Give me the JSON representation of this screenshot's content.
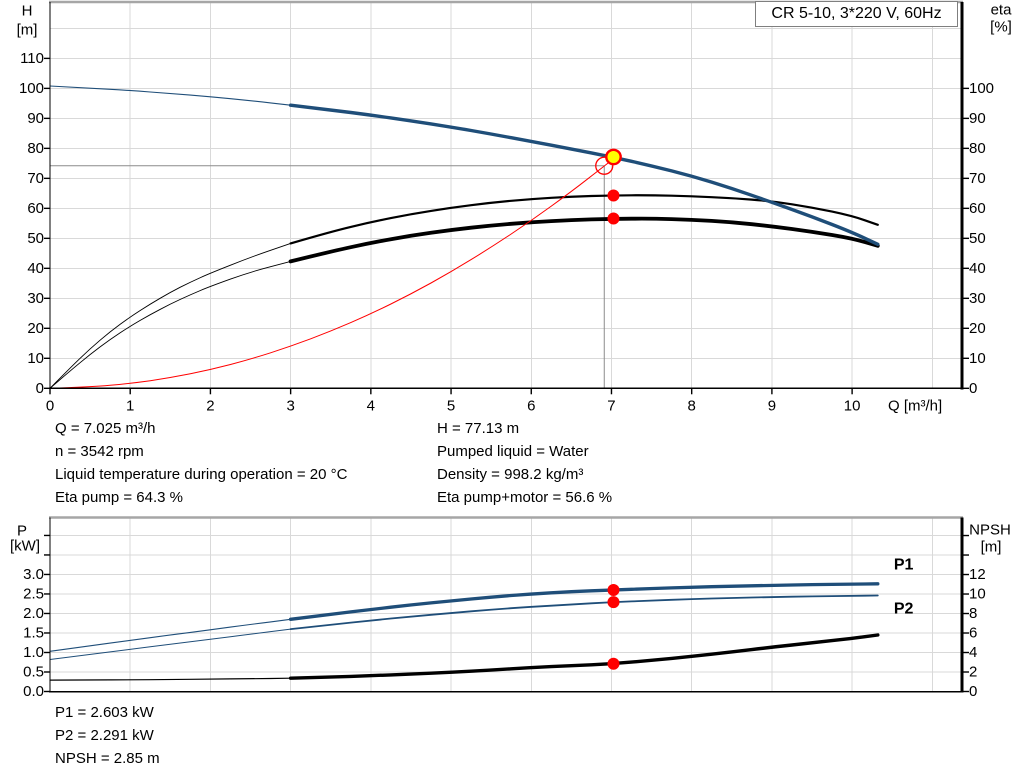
{
  "title_box": {
    "text": "CR 5-10, 3*220 V, 60Hz"
  },
  "info_top": {
    "left": [
      "Q = 7.025 m³/h",
      "n = 3542 rpm",
      "Liquid temperature during operation = 20 °C",
      "Eta pump = 64.3 %"
    ],
    "right": [
      "H = 77.13 m",
      "Pumped liquid = Water",
      "Density = 998.2 kg/m³",
      "Eta pump+motor = 56.6 %"
    ]
  },
  "info_bottom": [
    "P1 = 2.603 kW",
    "P2 = 2.291 kW",
    "NPSH = 2.85 m"
  ],
  "colors": {
    "curve_blue": "#1f4e79",
    "curve_black": "#000000",
    "red": "#ff0000",
    "yellow": "#ffff00",
    "grid": "#d9d9d9",
    "axis": "#000000",
    "border_gray": "#a6a6a6",
    "crosshair": "#8c8c8c"
  },
  "chart_data": [
    {
      "id": "hq",
      "type": "line",
      "title": "CR 5-10, 3*220 V, 60Hz",
      "x": {
        "label": "Q [m³/h]",
        "min": 0,
        "max": 11.37,
        "grid_step": 1,
        "ticks": [
          {
            "v": 0,
            "t": "0"
          },
          {
            "v": 1,
            "t": "1"
          },
          {
            "v": 2,
            "t": "2"
          },
          {
            "v": 3,
            "t": "3"
          },
          {
            "v": 4,
            "t": "4"
          },
          {
            "v": 5,
            "t": "5"
          },
          {
            "v": 6,
            "t": "6"
          },
          {
            "v": 7,
            "t": "7"
          },
          {
            "v": 8,
            "t": "8"
          },
          {
            "v": 9,
            "t": "9"
          },
          {
            "v": 10,
            "t": "10"
          }
        ]
      },
      "y_left": {
        "label": "H [m]",
        "label_lines": [
          "H",
          "[m]"
        ],
        "min": 0,
        "max": 128.8,
        "grid_step": 10,
        "ticks": [
          {
            "v": 0,
            "t": "0"
          },
          {
            "v": 10,
            "t": "10"
          },
          {
            "v": 20,
            "t": "20"
          },
          {
            "v": 30,
            "t": "30"
          },
          {
            "v": 40,
            "t": "40"
          },
          {
            "v": 50,
            "t": "50"
          },
          {
            "v": 60,
            "t": "60"
          },
          {
            "v": 70,
            "t": "70"
          },
          {
            "v": 80,
            "t": "80"
          },
          {
            "v": 90,
            "t": "90"
          },
          {
            "v": 100,
            "t": "100"
          },
          {
            "v": 110,
            "t": "110"
          }
        ],
        "extra_ticks": []
      },
      "y_right": {
        "label": "eta [%]",
        "label_lines": [
          "eta",
          "[%]"
        ],
        "min": 0,
        "max": 128.8,
        "ticks": [
          {
            "v": 0,
            "t": "0"
          },
          {
            "v": 10,
            "t": "10"
          },
          {
            "v": 20,
            "t": "20"
          },
          {
            "v": 30,
            "t": "30"
          },
          {
            "v": 40,
            "t": "40"
          },
          {
            "v": 50,
            "t": "50"
          },
          {
            "v": 60,
            "t": "60"
          },
          {
            "v": 70,
            "t": "70"
          },
          {
            "v": 80,
            "t": "80"
          },
          {
            "v": 90,
            "t": "90"
          },
          {
            "v": 100,
            "t": "100"
          }
        ],
        "extra_ticks": []
      },
      "series": [
        {
          "name": "eta-pump-curve",
          "axis": "right",
          "color": "#000000",
          "w": 2.2,
          "w_thin": 0.9,
          "thin_until": 3,
          "points": [
            [
              0,
              0
            ],
            [
              0.25,
              6.8
            ],
            [
              0.5,
              13.2
            ],
            [
              0.75,
              18.9
            ],
            [
              1,
              23.8
            ],
            [
              1.25,
              28.1
            ],
            [
              1.5,
              32.0
            ],
            [
              1.75,
              35.4
            ],
            [
              2,
              38.4
            ],
            [
              2.5,
              43.7
            ],
            [
              3,
              48.3
            ],
            [
              3.5,
              52.2
            ],
            [
              4,
              55.4
            ],
            [
              4.5,
              58.1
            ],
            [
              5,
              60.2
            ],
            [
              5.5,
              61.9
            ],
            [
              6,
              63.1
            ],
            [
              6.5,
              63.9
            ],
            [
              7,
              64.3
            ],
            [
              7.5,
              64.4
            ],
            [
              8,
              64.0
            ],
            [
              8.5,
              63.4
            ],
            [
              9,
              62.4
            ],
            [
              9.5,
              60.3
            ],
            [
              10,
              57.5
            ],
            [
              10.32,
              54.5
            ]
          ]
        },
        {
          "name": "eta-pump-motor-curve",
          "axis": "right",
          "color": "#000000",
          "w": 3.8,
          "w_thin": 0.9,
          "thin_until": 3,
          "points": [
            [
              0,
              0
            ],
            [
              0.25,
              5.8
            ],
            [
              0.5,
              11.3
            ],
            [
              0.75,
              16.3
            ],
            [
              1,
              20.7
            ],
            [
              1.25,
              24.6
            ],
            [
              1.5,
              28.1
            ],
            [
              1.75,
              31.2
            ],
            [
              2,
              34.0
            ],
            [
              2.5,
              38.8
            ],
            [
              3,
              42.3
            ],
            [
              3.5,
              45.6
            ],
            [
              4,
              48.5
            ],
            [
              4.5,
              50.9
            ],
            [
              5,
              52.8
            ],
            [
              5.5,
              54.3
            ],
            [
              6,
              55.4
            ],
            [
              6.5,
              56.1
            ],
            [
              7,
              56.5
            ],
            [
              7.5,
              56.6
            ],
            [
              8,
              56.2
            ],
            [
              8.5,
              55.4
            ],
            [
              9,
              54.0
            ],
            [
              9.5,
              52.2
            ],
            [
              10,
              50.0
            ],
            [
              10.32,
              47.5
            ]
          ]
        },
        {
          "name": "system-curve",
          "axis": "left",
          "color": "#ff0000",
          "w": 1,
          "points": [
            [
              0,
              0
            ],
            [
              0.5,
              0.4
            ],
            [
              1,
              1.6
            ],
            [
              1.5,
              3.5
            ],
            [
              2,
              6.2
            ],
            [
              2.5,
              9.7
            ],
            [
              3,
              14.0
            ],
            [
              3.5,
              19.0
            ],
            [
              4,
              24.8
            ],
            [
              4.5,
              31.4
            ],
            [
              5,
              38.8
            ],
            [
              5.5,
              47.0
            ],
            [
              6,
              55.9
            ],
            [
              6.5,
              65.6
            ],
            [
              6.91,
              74.1
            ],
            [
              7.04,
              76.9
            ]
          ]
        },
        {
          "name": "pump-curve",
          "axis": "left",
          "color": "#1f4e79",
          "w": 3.4,
          "w_thin": 1.1,
          "thin_until": 3,
          "points": [
            [
              0,
              100.8
            ],
            [
              0.5,
              100.1
            ],
            [
              1,
              99.3
            ],
            [
              1.5,
              98.3
            ],
            [
              2,
              97.2
            ],
            [
              2.5,
              95.9
            ],
            [
              3,
              94.4
            ],
            [
              3.5,
              92.8
            ],
            [
              4,
              91.1
            ],
            [
              4.5,
              89.2
            ],
            [
              5,
              87.1
            ],
            [
              5.5,
              84.8
            ],
            [
              6,
              82.3
            ],
            [
              6.5,
              79.8
            ],
            [
              7,
              77.2
            ],
            [
              7.5,
              74.2
            ],
            [
              8,
              70.8
            ],
            [
              8.5,
              66.7
            ],
            [
              9,
              62.0
            ],
            [
              9.5,
              57.2
            ],
            [
              10,
              52.0
            ],
            [
              10.32,
              48.0
            ]
          ]
        }
      ],
      "crosshair": {
        "x": 6.91,
        "y": 74.2
      },
      "markers": [
        {
          "kind": "system-point",
          "axis": "left",
          "x": 6.91,
          "y": 74.2,
          "style": "red-open"
        },
        {
          "kind": "duty-point",
          "axis": "left",
          "x": 7.025,
          "y": 77.13,
          "style": "yellow-red"
        },
        {
          "kind": "eta-pump-point",
          "axis": "right",
          "x": 7.025,
          "y": 64.3,
          "style": "red-dot"
        },
        {
          "kind": "eta-pump-motor-point",
          "axis": "right",
          "x": 7.025,
          "y": 56.6,
          "style": "red-dot"
        }
      ],
      "series_labels": []
    },
    {
      "id": "power_npsh",
      "type": "line",
      "title": "",
      "x": {
        "label": "",
        "min": 0,
        "max": 11.37,
        "grid_step": 1,
        "ticks": []
      },
      "y_left": {
        "label": "P [kW]",
        "label_lines": [
          "P",
          "[kW]"
        ],
        "min": 0,
        "max": 4.46,
        "grid_step": 0.5,
        "ticks": [
          {
            "v": 0,
            "t": "0.0"
          },
          {
            "v": 0.5,
            "t": "0.5"
          },
          {
            "v": 1,
            "t": "1.0"
          },
          {
            "v": 1.5,
            "t": "1.5"
          },
          {
            "v": 2,
            "t": "2.0"
          },
          {
            "v": 2.5,
            "t": "2.5"
          },
          {
            "v": 3,
            "t": "3.0"
          }
        ],
        "extra_ticks": [
          3.5,
          4.0
        ]
      },
      "y_right": {
        "label": "NPSH [m]",
        "label_lines": [
          "NPSH",
          "[m]"
        ],
        "min": 0,
        "max": 17.85,
        "ticks": [
          {
            "v": 0,
            "t": "0"
          },
          {
            "v": 2,
            "t": "2"
          },
          {
            "v": 4,
            "t": "4"
          },
          {
            "v": 6,
            "t": "6"
          },
          {
            "v": 8,
            "t": "8"
          },
          {
            "v": 10,
            "t": "10"
          },
          {
            "v": 12,
            "t": "12"
          }
        ],
        "extra_ticks": [
          14,
          16
        ]
      },
      "series": [
        {
          "name": "p2-curve",
          "axis": "left",
          "color": "#1f4e79",
          "w": 1.8,
          "w_thin": 1.0,
          "thin_until": 3,
          "points": [
            [
              0,
              0.82
            ],
            [
              0.5,
              0.95
            ],
            [
              1,
              1.08
            ],
            [
              1.5,
              1.21
            ],
            [
              2,
              1.34
            ],
            [
              2.5,
              1.47
            ],
            [
              3,
              1.6
            ],
            [
              3.5,
              1.71
            ],
            [
              4,
              1.82
            ],
            [
              4.5,
              1.92
            ],
            [
              5,
              2.01
            ],
            [
              5.5,
              2.1
            ],
            [
              6,
              2.17
            ],
            [
              6.5,
              2.23
            ],
            [
              7,
              2.29
            ],
            [
              7.5,
              2.33
            ],
            [
              8,
              2.37
            ],
            [
              8.5,
              2.4
            ],
            [
              9,
              2.42
            ],
            [
              9.5,
              2.44
            ],
            [
              10,
              2.45
            ],
            [
              10.32,
              2.46
            ]
          ]
        },
        {
          "name": "p1-curve",
          "axis": "left",
          "color": "#1f4e79",
          "w": 3.3,
          "w_thin": 1.1,
          "thin_until": 3,
          "points": [
            [
              0,
              1.03
            ],
            [
              0.5,
              1.17
            ],
            [
              1,
              1.31
            ],
            [
              1.5,
              1.45
            ],
            [
              2,
              1.58
            ],
            [
              2.5,
              1.72
            ],
            [
              3,
              1.85
            ],
            [
              3.5,
              1.98
            ],
            [
              4,
              2.1
            ],
            [
              4.5,
              2.22
            ],
            [
              5,
              2.32
            ],
            [
              5.5,
              2.42
            ],
            [
              6,
              2.5
            ],
            [
              6.5,
              2.56
            ],
            [
              7,
              2.6
            ],
            [
              7.5,
              2.64
            ],
            [
              8,
              2.67
            ],
            [
              8.5,
              2.7
            ],
            [
              9,
              2.72
            ],
            [
              9.5,
              2.74
            ],
            [
              10,
              2.75
            ],
            [
              10.32,
              2.76
            ]
          ]
        },
        {
          "name": "npsh-curve",
          "axis": "right",
          "color": "#000000",
          "w": 3.4,
          "w_thin": 1.2,
          "thin_until": 3,
          "points": [
            [
              0,
              1.17
            ],
            [
              0.5,
              1.18
            ],
            [
              1,
              1.2
            ],
            [
              1.5,
              1.23
            ],
            [
              2,
              1.27
            ],
            [
              2.5,
              1.31
            ],
            [
              3,
              1.36
            ],
            [
              3.5,
              1.48
            ],
            [
              4,
              1.62
            ],
            [
              4.5,
              1.78
            ],
            [
              5,
              1.97
            ],
            [
              5.5,
              2.2
            ],
            [
              6,
              2.45
            ],
            [
              6.5,
              2.65
            ],
            [
              7,
              2.83
            ],
            [
              7.5,
              3.2
            ],
            [
              8,
              3.6
            ],
            [
              8.5,
              4.05
            ],
            [
              9,
              4.55
            ],
            [
              9.5,
              5.0
            ],
            [
              10,
              5.45
            ],
            [
              10.32,
              5.8
            ]
          ]
        }
      ],
      "markers": [
        {
          "kind": "p1-point",
          "axis": "left",
          "x": 7.025,
          "y": 2.603,
          "style": "red-dot"
        },
        {
          "kind": "p2-point",
          "axis": "left",
          "x": 7.025,
          "y": 2.291,
          "style": "red-dot"
        },
        {
          "kind": "npsh-point",
          "axis": "right",
          "x": 7.025,
          "y": 2.85,
          "style": "red-dot"
        }
      ],
      "series_labels": [
        {
          "text": "P1",
          "axis": "left",
          "x": 10.52,
          "y": 3.24,
          "color": "#1f4e79"
        },
        {
          "text": "P2",
          "axis": "left",
          "x": 10.52,
          "y": 2.11,
          "color": "#1f4e79"
        }
      ]
    }
  ]
}
